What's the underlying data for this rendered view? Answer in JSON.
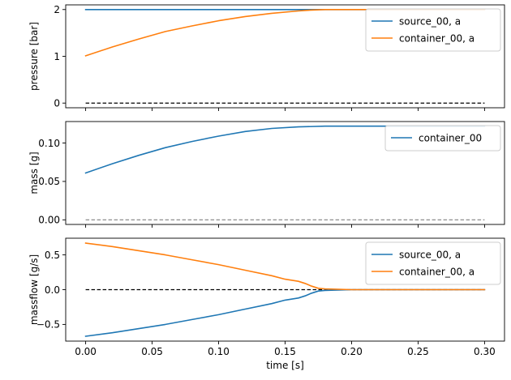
{
  "chart_data": [
    {
      "type": "line",
      "xlabel": "",
      "ylabel": "pressure [bar]",
      "xlim": [
        -0.015,
        0.315
      ],
      "ylim": [
        -0.1,
        2.1
      ],
      "xticks": [
        0.0,
        0.05,
        0.1,
        0.15,
        0.2,
        0.25,
        0.3
      ],
      "xtick_labels": [],
      "yticks": [
        0,
        1,
        2
      ],
      "ytick_labels": [
        "0",
        "1",
        "2"
      ],
      "legend": "top-right",
      "grid": false,
      "reference_line": {
        "y": 0,
        "style": "dashed",
        "color": "#000000"
      },
      "series": [
        {
          "name": "source_00, a",
          "color": "#1f77b4",
          "x": [
            0.0,
            0.3
          ],
          "y": [
            2.0,
            2.0
          ]
        },
        {
          "name": "container_00, a",
          "color": "#ff7f0e",
          "x": [
            0.0,
            0.02,
            0.04,
            0.06,
            0.08,
            0.1,
            0.12,
            0.14,
            0.16,
            0.17,
            0.18,
            0.2,
            0.22,
            0.25,
            0.3
          ],
          "y": [
            1.01,
            1.2,
            1.37,
            1.53,
            1.65,
            1.76,
            1.85,
            1.92,
            1.97,
            1.99,
            2.0,
            2.0,
            2.0,
            2.0,
            2.0
          ]
        }
      ]
    },
    {
      "type": "line",
      "xlabel": "",
      "ylabel": "mass [g]",
      "xlim": [
        -0.015,
        0.315
      ],
      "ylim": [
        -0.006,
        0.128
      ],
      "xticks": [
        0.0,
        0.05,
        0.1,
        0.15,
        0.2,
        0.25,
        0.3
      ],
      "xtick_labels": [],
      "yticks": [
        0.0,
        0.05,
        0.1
      ],
      "ytick_labels": [
        "0.00",
        "0.05",
        "0.10"
      ],
      "legend": "top-right",
      "grid": false,
      "reference_line": {
        "y": 0,
        "style": "dashed",
        "color": "#808080"
      },
      "series": [
        {
          "name": "container_00",
          "color": "#1f77b4",
          "x": [
            0.0,
            0.02,
            0.04,
            0.06,
            0.08,
            0.1,
            0.12,
            0.14,
            0.16,
            0.18,
            0.2,
            0.25,
            0.3
          ],
          "y": [
            0.061,
            0.073,
            0.084,
            0.094,
            0.102,
            0.109,
            0.115,
            0.119,
            0.121,
            0.122,
            0.122,
            0.122,
            0.122
          ]
        }
      ]
    },
    {
      "type": "line",
      "xlabel": "time [s]",
      "ylabel": "massflow [g/s]",
      "xlim": [
        -0.015,
        0.315
      ],
      "ylim": [
        -0.74,
        0.74
      ],
      "xticks": [
        0.0,
        0.05,
        0.1,
        0.15,
        0.2,
        0.25,
        0.3
      ],
      "xtick_labels": [
        "0.00",
        "0.05",
        "0.10",
        "0.15",
        "0.20",
        "0.25",
        "0.30"
      ],
      "yticks": [
        -0.5,
        0.0,
        0.5
      ],
      "ytick_labels": [
        "−0.5",
        "0.0",
        "0.5"
      ],
      "legend": "top-right",
      "grid": false,
      "reference_line": {
        "y": 0,
        "style": "dashed",
        "color": "#000000"
      },
      "series": [
        {
          "name": "source_00, a",
          "color": "#1f77b4",
          "x": [
            0.0,
            0.02,
            0.04,
            0.06,
            0.08,
            0.1,
            0.12,
            0.14,
            0.15,
            0.16,
            0.165,
            0.17,
            0.175,
            0.18,
            0.2,
            0.25,
            0.3
          ],
          "y": [
            -0.67,
            -0.62,
            -0.56,
            -0.5,
            -0.43,
            -0.36,
            -0.28,
            -0.2,
            -0.15,
            -0.12,
            -0.09,
            -0.05,
            -0.02,
            -0.01,
            0.0,
            0.0,
            0.0
          ]
        },
        {
          "name": "container_00, a",
          "color": "#ff7f0e",
          "x": [
            0.0,
            0.02,
            0.04,
            0.06,
            0.08,
            0.1,
            0.12,
            0.14,
            0.15,
            0.16,
            0.165,
            0.17,
            0.175,
            0.18,
            0.2,
            0.25,
            0.3
          ],
          "y": [
            0.67,
            0.62,
            0.56,
            0.5,
            0.43,
            0.36,
            0.28,
            0.2,
            0.15,
            0.12,
            0.09,
            0.05,
            0.02,
            0.01,
            0.0,
            0.0,
            0.0
          ]
        }
      ]
    }
  ]
}
